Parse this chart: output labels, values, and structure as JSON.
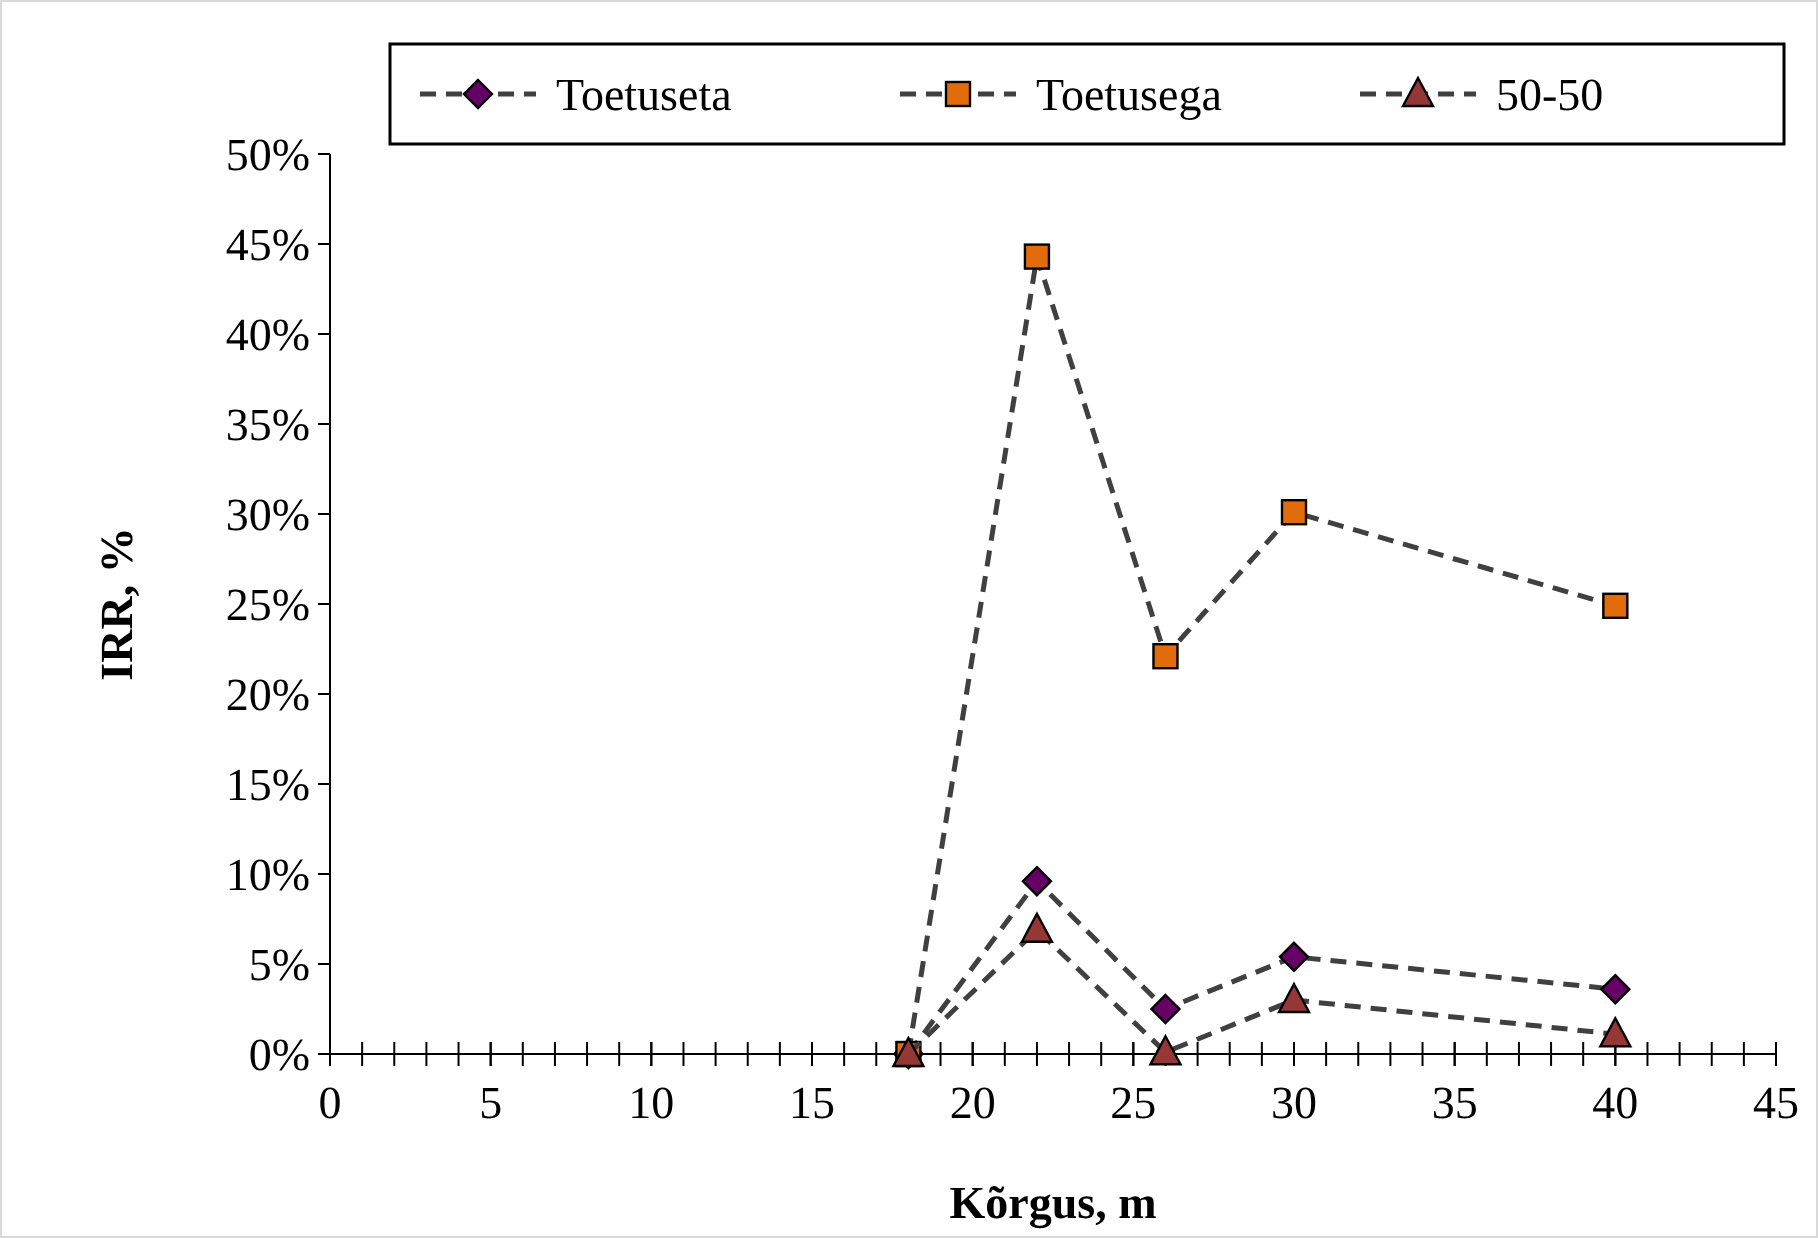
{
  "chart_data": {
    "type": "line",
    "xlabel": "Kõrgus, m",
    "ylabel": "IRR, %",
    "x": [
      18,
      22,
      26,
      30,
      40
    ],
    "series": [
      {
        "name": "Toetuseta",
        "color": "#660066",
        "marker": "diamond",
        "values": [
          0,
          9.6,
          2.5,
          5.4,
          3.6
        ]
      },
      {
        "name": "Toetusega",
        "color": "#e36c0a",
        "marker": "square",
        "values": [
          0,
          44.3,
          22.1,
          30.1,
          24.9
        ]
      },
      {
        "name": "50-50",
        "color": "#953735",
        "marker": "triangle",
        "values": [
          0,
          6.9,
          0.1,
          3.0,
          1.1
        ]
      }
    ],
    "line_style": "dashed",
    "legend": "top",
    "grid": false,
    "xlim": [
      0,
      45
    ],
    "xticks": [
      0,
      5,
      10,
      15,
      20,
      25,
      30,
      35,
      40,
      45
    ],
    "ylim": [
      0,
      50
    ],
    "yticks": [
      {
        "value": 0,
        "label": "0%"
      },
      {
        "value": 5,
        "label": "5%"
      },
      {
        "value": 10,
        "label": "10%"
      },
      {
        "value": 15,
        "label": "15%"
      },
      {
        "value": 20,
        "label": "20%"
      },
      {
        "value": 25,
        "label": "25%"
      },
      {
        "value": 30,
        "label": "30%"
      },
      {
        "value": 35,
        "label": "35%"
      },
      {
        "value": 40,
        "label": "40%"
      },
      {
        "value": 45,
        "label": "45%"
      },
      {
        "value": 50,
        "label": "50%"
      }
    ]
  }
}
